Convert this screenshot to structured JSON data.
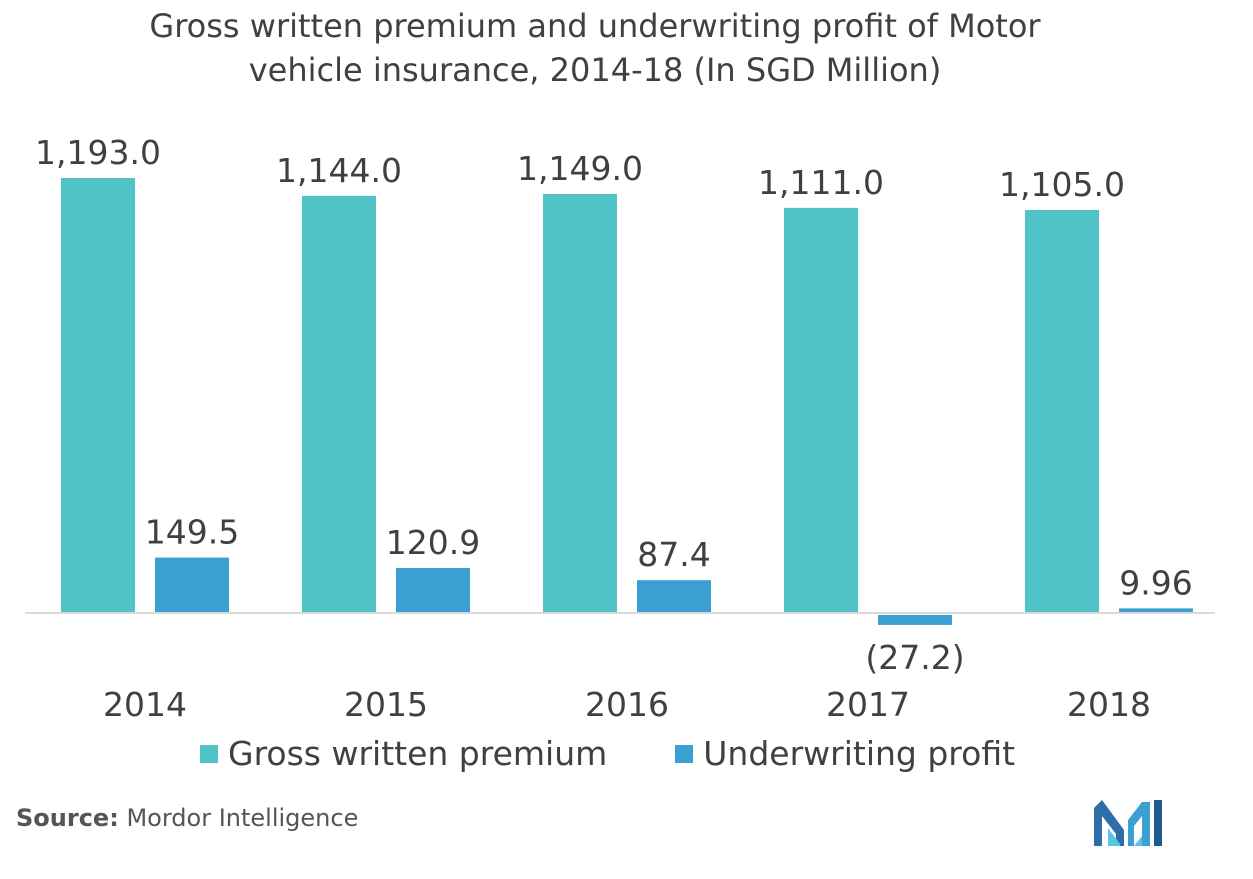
{
  "title_line1": "Gross written premium and underwriting profit of Motor",
  "title_line2": "vehicle insurance, 2014-18 (In SGD Million)",
  "source_label": "Source:",
  "source_text": "Mordor Intelligence",
  "logo_icon": "mordor-intelligence-logo",
  "chart_data": {
    "type": "bar",
    "title": "Gross written premium and underwriting profit of Motor vehicle insurance, 2014-18 (In SGD Million)",
    "categories": [
      "2014",
      "2015",
      "2016",
      "2017",
      "2018"
    ],
    "series": [
      {
        "name": "Gross written premium",
        "color": "#4FC3C7",
        "values": [
          1193.0,
          1144.0,
          1149.0,
          1111.0,
          1105.0
        ],
        "labels": [
          "1,193.0",
          "1,144.0",
          "1,149.0",
          "1,111.0",
          "1,105.0"
        ]
      },
      {
        "name": "Underwriting profit",
        "color": "#3A9FD1",
        "values": [
          149.5,
          120.9,
          87.4,
          -27.2,
          9.96
        ],
        "labels": [
          "149.5",
          "120.9",
          "87.4",
          "(27.2)",
          "9.96"
        ]
      }
    ],
    "xlabel": "",
    "ylabel": "",
    "grid": false,
    "legend": "bottom"
  }
}
